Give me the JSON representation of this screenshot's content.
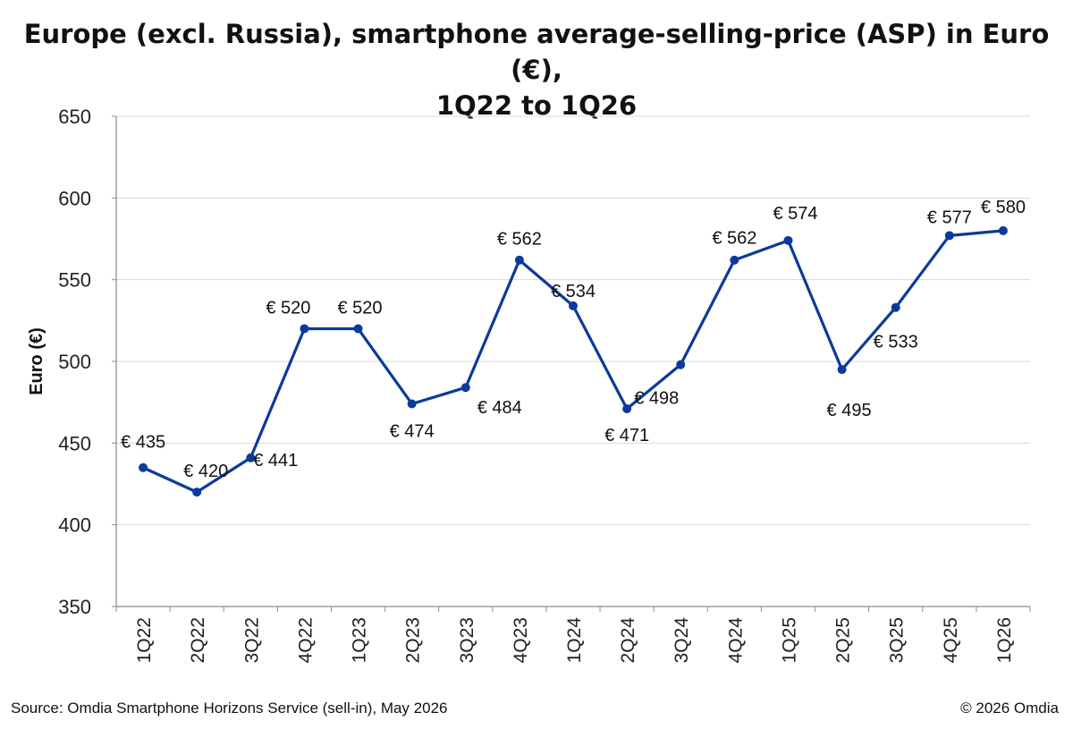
{
  "title_line1": "Europe (excl. Russia), smartphone average-selling-price (ASP) in Euro (€),",
  "title_line2": "1Q22 to 1Q26",
  "source": "Source: Omdia Smartphone Horizons Service (sell-in), May 2026",
  "copyright": "© 2026 Omdia",
  "colors": {
    "line": "#0a3a9c",
    "grid": "#d9d9d9",
    "axis": "#8c8c8c"
  },
  "chart_data": {
    "type": "line",
    "ylabel": "Euro (€)",
    "xlabel": "",
    "ylim": [
      350,
      650
    ],
    "yticks": [
      350,
      400,
      450,
      500,
      550,
      600,
      650
    ],
    "grid": "horizontal",
    "legend": "none",
    "categories": [
      "1Q22",
      "2Q22",
      "3Q22",
      "4Q22",
      "1Q23",
      "2Q23",
      "3Q23",
      "4Q23",
      "1Q24",
      "2Q24",
      "3Q24",
      "4Q24",
      "1Q25",
      "2Q25",
      "3Q25",
      "4Q25",
      "1Q26"
    ],
    "values": [
      435,
      420,
      441,
      520,
      520,
      474,
      484,
      562,
      534,
      471,
      498,
      562,
      574,
      495,
      533,
      577,
      580
    ],
    "data_labels": [
      "€ 435",
      "€ 420",
      "€ 441",
      "€ 520",
      "€ 520",
      "€ 474",
      "€ 484",
      "€ 562",
      "€ 534",
      "€ 471",
      "€ 498",
      "€ 562",
      "€ 574",
      "€ 495",
      "€ 533",
      "€ 577",
      "€ 580"
    ]
  }
}
